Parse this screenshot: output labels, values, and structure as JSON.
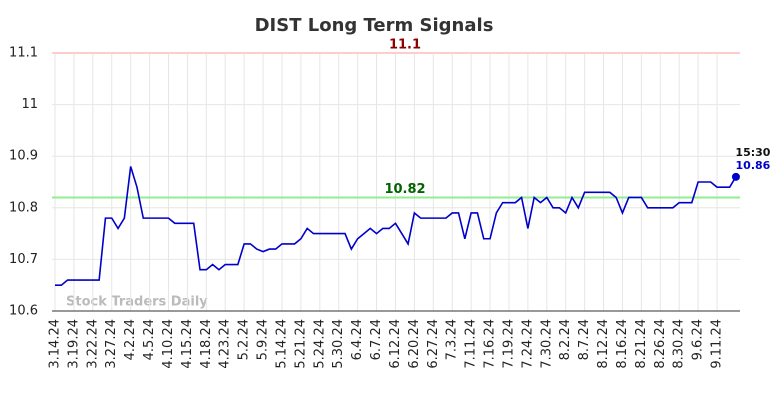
{
  "chart_data": {
    "type": "line",
    "title": "DIST Long Term Signals",
    "watermark": "Stock Traders Daily",
    "categories": [
      "3.14.24",
      null,
      null,
      "3.19.24",
      null,
      null,
      "3.22.24",
      null,
      null,
      "3.27.24",
      null,
      null,
      "4.2.24",
      null,
      null,
      "4.5.24",
      null,
      null,
      "4.10.24",
      null,
      null,
      "4.15.24",
      null,
      null,
      "4.18.24",
      null,
      null,
      "4.23.24",
      null,
      null,
      "5.2.24",
      null,
      null,
      "5.9.24",
      null,
      null,
      "5.14.24",
      null,
      null,
      "5.21.24",
      null,
      null,
      "5.24.24",
      null,
      null,
      "5.30.24",
      null,
      null,
      "6.4.24",
      null,
      null,
      "6.7.24",
      null,
      null,
      "6.12.24",
      null,
      null,
      "6.20.24",
      null,
      null,
      "6.27.24",
      null,
      null,
      "7.3.24",
      null,
      null,
      "7.11.24",
      null,
      null,
      "7.16.24",
      null,
      null,
      "7.19.24",
      null,
      null,
      "7.24.24",
      null,
      null,
      "7.30.24",
      null,
      null,
      "8.2.24",
      null,
      null,
      "8.7.24",
      null,
      null,
      "8.12.24",
      null,
      null,
      "8.16.24",
      null,
      null,
      "8.21.24",
      null,
      null,
      "8.26.24",
      null,
      null,
      "8.30.24",
      null,
      null,
      "9.6.24",
      null,
      null,
      "9.11.24",
      null,
      null,
      null
    ],
    "series": [
      {
        "color": "#0000cc",
        "values": [
          10.65,
          10.65,
          10.66,
          10.66,
          10.66,
          10.66,
          10.66,
          10.66,
          10.78,
          10.78,
          10.76,
          10.78,
          10.88,
          10.84,
          10.78,
          10.78,
          10.78,
          10.78,
          10.78,
          10.77,
          10.77,
          10.77,
          10.77,
          10.68,
          10.68,
          10.69,
          10.68,
          10.69,
          10.69,
          10.69,
          10.73,
          10.73,
          10.72,
          10.715,
          10.72,
          10.72,
          10.73,
          10.73,
          10.73,
          10.74,
          10.76,
          10.75,
          10.75,
          10.75,
          10.75,
          10.75,
          10.75,
          10.72,
          10.74,
          10.75,
          10.76,
          10.75,
          10.76,
          10.76,
          10.77,
          10.75,
          10.73,
          10.79,
          10.78,
          10.78,
          10.78,
          10.78,
          10.78,
          10.79,
          10.79,
          10.74,
          10.79,
          10.79,
          10.74,
          10.74,
          10.79,
          10.81,
          10.81,
          10.81,
          10.82,
          10.76,
          10.82,
          10.81,
          10.82,
          10.8,
          10.8,
          10.79,
          10.82,
          10.8,
          10.83,
          10.83,
          10.83,
          10.83,
          10.83,
          10.82,
          10.79,
          10.82,
          10.82,
          10.82,
          10.8,
          10.8,
          10.8,
          10.8,
          10.8,
          10.81,
          10.81,
          10.81,
          10.85,
          10.85,
          10.85,
          10.84,
          10.84,
          10.84,
          10.86
        ]
      }
    ],
    "last_time": "15:30",
    "hlines": [
      {
        "value": 11.1,
        "color": "#ffcccc",
        "label_color": "#8b0000"
      },
      {
        "value": 10.82,
        "color": "#90ee90",
        "label_color": "#006400"
      }
    ],
    "ylim": [
      10.6,
      11.1
    ],
    "yticks": [
      10.6,
      10.7,
      10.8,
      10.9,
      11,
      11.1
    ],
    "grid": true
  }
}
